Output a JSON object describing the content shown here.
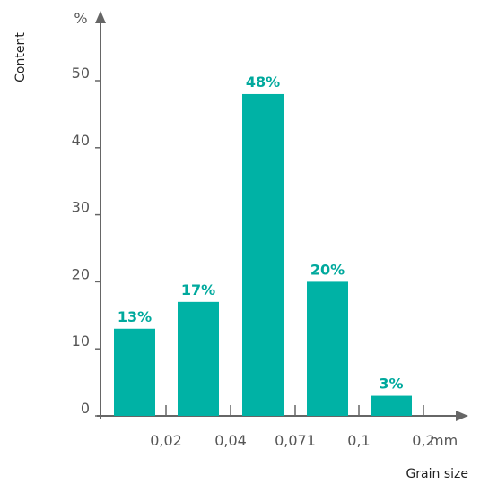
{
  "chart_data": {
    "type": "bar",
    "ylabel": "Content",
    "y_unit": "%",
    "xlabel": "Grain size",
    "x_unit": "mm",
    "ylim": [
      0,
      55
    ],
    "yticks": [
      0,
      10,
      20,
      30,
      40,
      50
    ],
    "x_boundaries": [
      "0,02",
      "0,04",
      "0,071",
      "0,1",
      "0,2"
    ],
    "categories": [
      "< 0,02",
      "0,02–0,04",
      "0,04–0,071",
      "0,071–0,1",
      "0,1–0,2"
    ],
    "values": [
      13,
      17,
      48,
      20,
      3
    ],
    "value_labels": [
      "13%",
      "17%",
      "48%",
      "20%",
      "3%"
    ],
    "grid": false,
    "legend": "none",
    "colors": {
      "bar": "#00b2a5",
      "label": "#00a99d",
      "axis": "#666666"
    }
  }
}
